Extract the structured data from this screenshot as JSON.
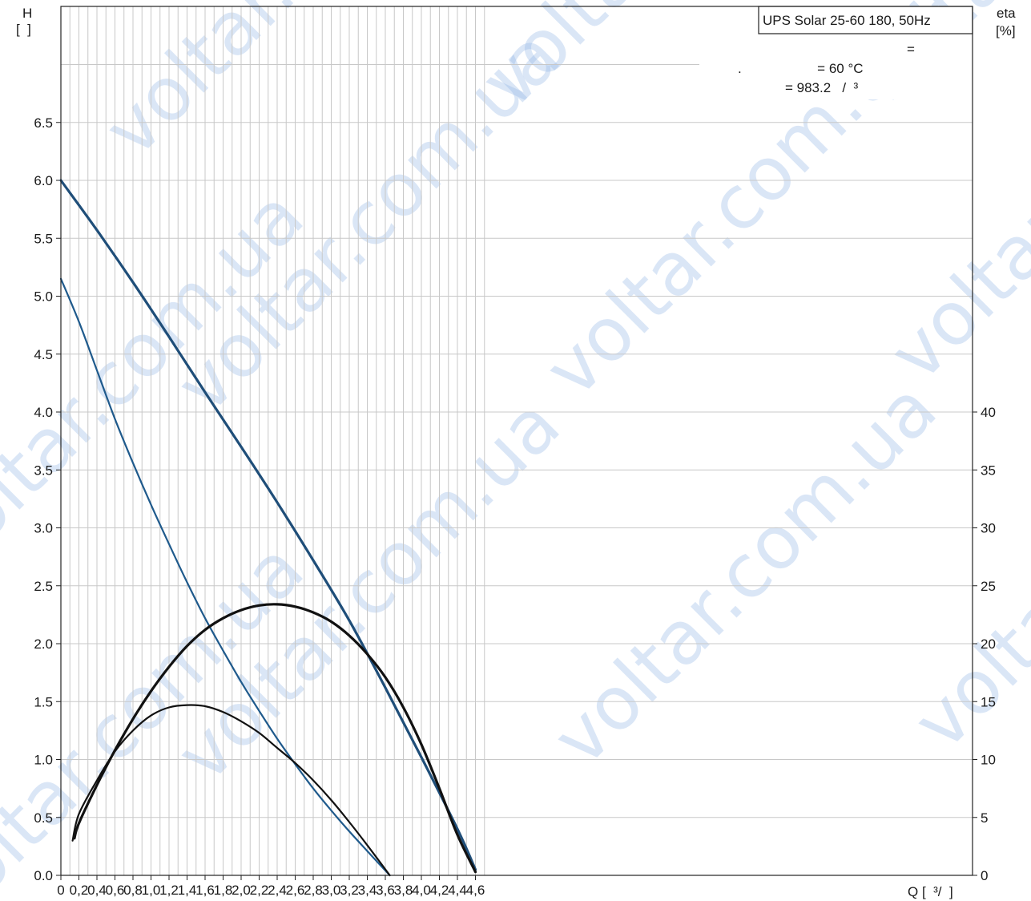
{
  "watermark": "voltar.com.ua",
  "chart_data": {
    "type": "line",
    "title": "UPS Solar 25-60 180, 50Hz",
    "info_lines": [
      "=",
      ".                    = 60 °C",
      "= 983.2   /  ³"
    ],
    "xlabel": "Q [  ³/  ]",
    "ylabel_left": [
      "H",
      "[  ]"
    ],
    "ylabel_right": [
      "eta",
      "[%]"
    ],
    "xlim": [
      0,
      4.7
    ],
    "ylim_left": [
      0,
      7.0
    ],
    "ylim_right": [
      0,
      70
    ],
    "x_ticks": [
      0,
      0.2,
      0.4,
      0.6,
      0.8,
      1.0,
      1.2,
      1.4,
      1.6,
      1.8,
      2.0,
      2.2,
      2.4,
      2.6,
      2.8,
      3.0,
      3.2,
      3.4,
      3.6,
      3.8,
      4.0,
      4.2,
      4.4,
      4.6
    ],
    "x_tick_labels": [
      "0",
      "0,2",
      "0,4",
      "0,6",
      "0,8",
      "1,0",
      "1,2",
      "1,4",
      "1,6",
      "1,8",
      "2,0",
      "2,2",
      "2,4",
      "2,6",
      "2,8",
      "3,0",
      "3,2",
      "3,4",
      "3,6",
      "3,8",
      "4,0",
      "4,2",
      "4,4",
      "4,6"
    ],
    "y_ticks_left": [
      0,
      0.5,
      1.0,
      1.5,
      2.0,
      2.5,
      3.0,
      3.5,
      4.0,
      4.5,
      5.0,
      5.5,
      6.0,
      6.5
    ],
    "y_tick_labels_left": [
      "0.0",
      "0.5",
      "1.0",
      "1.5",
      "2.0",
      "2.5",
      "3.0",
      "3.5",
      "4.0",
      "4.5",
      "5.0",
      "5.5",
      "6.0",
      "6.5"
    ],
    "y_ticks_right": [
      0,
      5,
      10,
      15,
      20,
      25,
      30,
      35,
      40
    ],
    "y_tick_labels_right": [
      "0",
      "5",
      "10",
      "15",
      "20",
      "25",
      "30",
      "35",
      "40"
    ],
    "grid": true,
    "series": [
      {
        "axis": "left",
        "color": "#1f4e79",
        "width": 3.2,
        "x": [
          0,
          0.4,
          0.8,
          1.2,
          1.6,
          2.0,
          2.4,
          2.8,
          3.2,
          3.6,
          4.0,
          4.4,
          4.6
        ],
        "y": [
          6.0,
          5.57,
          5.12,
          4.65,
          4.17,
          3.7,
          3.22,
          2.72,
          2.2,
          1.62,
          1.02,
          0.4,
          0.05
        ]
      },
      {
        "axis": "left",
        "color": "#1f5a8c",
        "width": 2.2,
        "x": [
          0,
          0.2,
          0.4,
          0.6,
          0.8,
          1.0,
          1.2,
          1.4,
          1.6,
          1.8,
          2.0,
          2.2,
          2.4,
          2.6,
          2.8,
          3.0,
          3.2,
          3.4,
          3.65
        ],
        "y": [
          5.15,
          4.78,
          4.36,
          3.94,
          3.56,
          3.2,
          2.86,
          2.53,
          2.22,
          1.94,
          1.67,
          1.42,
          1.18,
          0.96,
          0.75,
          0.56,
          0.38,
          0.21,
          0.0
        ]
      },
      {
        "axis": "right",
        "color": "#111111",
        "width": 3.2,
        "x": [
          0.15,
          0.2,
          0.4,
          0.6,
          0.8,
          1.0,
          1.2,
          1.4,
          1.6,
          1.8,
          2.0,
          2.2,
          2.4,
          2.6,
          2.8,
          3.0,
          3.2,
          3.4,
          3.6,
          3.8,
          4.0,
          4.2,
          4.4,
          4.6
        ],
        "y": [
          3.2,
          4.5,
          7.8,
          10.8,
          13.5,
          15.9,
          18.0,
          19.8,
          21.2,
          22.2,
          22.9,
          23.3,
          23.4,
          23.2,
          22.7,
          21.9,
          20.7,
          19.1,
          17.1,
          14.5,
          11.3,
          7.5,
          3.5,
          0.3
        ]
      },
      {
        "axis": "right",
        "color": "#111111",
        "width": 2.2,
        "x": [
          0.13,
          0.2,
          0.4,
          0.6,
          0.8,
          1.0,
          1.2,
          1.4,
          1.6,
          1.8,
          2.0,
          2.2,
          2.4,
          2.6,
          2.8,
          3.0,
          3.2,
          3.4,
          3.65
        ],
        "y": [
          3.0,
          5.3,
          8.2,
          10.7,
          12.5,
          13.8,
          14.5,
          14.7,
          14.6,
          14.1,
          13.3,
          12.3,
          11.0,
          9.7,
          8.2,
          6.5,
          4.6,
          2.6,
          0.0
        ]
      }
    ]
  }
}
